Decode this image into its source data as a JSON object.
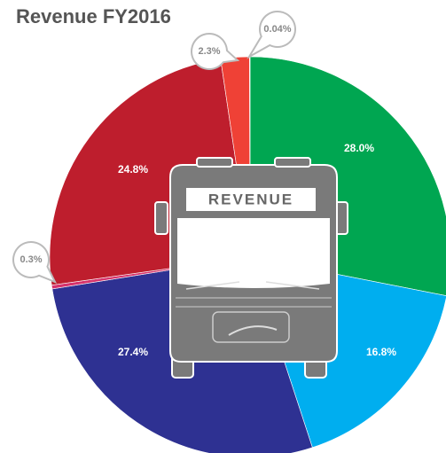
{
  "chart_data": {
    "type": "pie",
    "title": "Revenue FY2016",
    "annotation": "REVENUE",
    "categories": [
      null,
      null,
      null,
      null,
      null,
      null,
      null
    ],
    "values": [
      28.0,
      16.8,
      27.4,
      0.3,
      24.8,
      2.3,
      0.04
    ],
    "value_labels": [
      "28.0%",
      "16.8%",
      "27.4%",
      "0.3%",
      "24.8%",
      "2.3%",
      "0.04%"
    ],
    "colors": [
      "#00a651",
      "#00aeef",
      "#2e3192",
      "#d6336c",
      "#be1e2d",
      "#ef4136",
      "#f7e11b"
    ]
  }
}
